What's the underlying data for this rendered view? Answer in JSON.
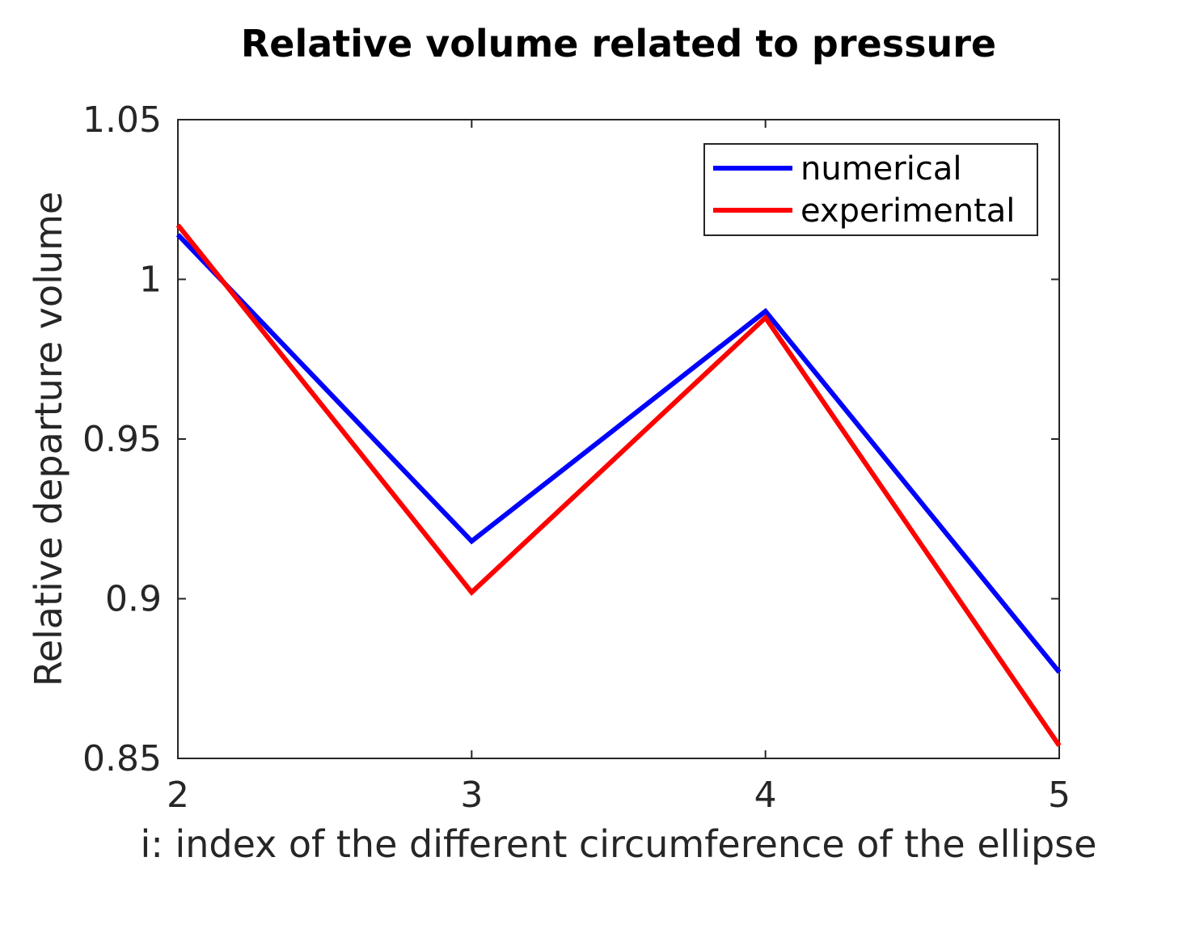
{
  "chart_data": {
    "type": "line",
    "title": "Relative volume related to pressure",
    "xlabel": "i: index of the different circumference of the ellipse",
    "ylabel": "Relative departure volume",
    "xlim": [
      2,
      5
    ],
    "ylim": [
      0.85,
      1.05
    ],
    "x": [
      2,
      3,
      4,
      5
    ],
    "x_ticks": [
      "2",
      "3",
      "4",
      "5"
    ],
    "y_ticks": [
      "0.85",
      "0.9",
      "0.95",
      "1",
      "1.05"
    ],
    "y_tick_values": [
      0.85,
      0.9,
      0.95,
      1.0,
      1.05
    ],
    "legend_position": "top-right",
    "series": [
      {
        "name": "numerical",
        "color": "#0000ff",
        "values": [
          1.014,
          0.918,
          0.99,
          0.877
        ]
      },
      {
        "name": "experimental",
        "color": "#ff0000",
        "values": [
          1.017,
          0.902,
          0.988,
          0.854
        ]
      }
    ]
  }
}
